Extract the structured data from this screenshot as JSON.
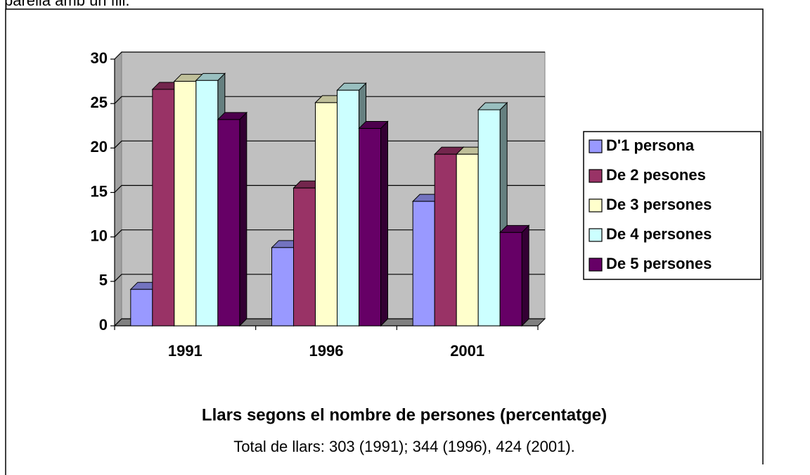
{
  "page_text": "parella amb un fill.",
  "chart_data": {
    "type": "bar",
    "title": "Llars segons el nombre de persones (percentatge)",
    "subtitle": "Total de llars: 303 (1991); 344 (1996), 424 (2001).",
    "categories": [
      "1991",
      "1996",
      "2001"
    ],
    "series": [
      {
        "name": "D'1 persona",
        "color": "#9999ff",
        "values": [
          4.1,
          8.8,
          14.0
        ]
      },
      {
        "name": "De 2 pesones",
        "color": "#993366",
        "values": [
          26.6,
          15.5,
          19.3
        ]
      },
      {
        "name": "De 3 persones",
        "color": "#ffffcc",
        "values": [
          27.5,
          25.1,
          19.3
        ]
      },
      {
        "name": "De 4 persones",
        "color": "#ccffff",
        "values": [
          27.6,
          26.5,
          24.3
        ]
      },
      {
        "name": "De 5 persones",
        "color": "#660066",
        "values": [
          23.2,
          22.2,
          10.5
        ]
      }
    ],
    "ylim": [
      0,
      30
    ],
    "yticks": [
      0,
      5,
      10,
      15,
      20,
      25,
      30
    ],
    "grid": true,
    "legend": "right"
  }
}
